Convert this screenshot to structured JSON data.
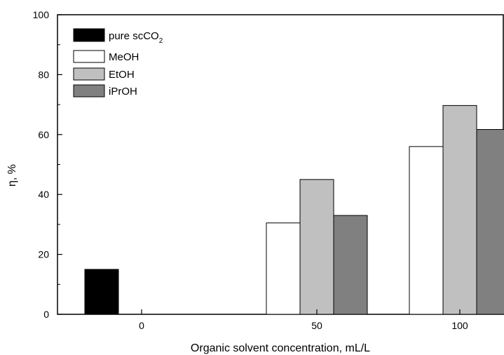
{
  "chart_data": {
    "type": "bar",
    "title": "",
    "xlabel": "Organic solvent concentration, mL/L",
    "ylabel": "η, %",
    "ylim": [
      0,
      100
    ],
    "yticks": [
      "0",
      "20",
      "40",
      "60",
      "80",
      "100"
    ],
    "categories": [
      "0",
      "50",
      "100"
    ],
    "legend_position": "top-left",
    "grid": false,
    "series": [
      {
        "name": "pure scCO",
        "name_subscript": "2",
        "color": "#000000",
        "values": [
          15,
          null,
          null
        ]
      },
      {
        "name": "MeOH",
        "color": "#ffffff",
        "values": [
          null,
          30.5,
          56
        ]
      },
      {
        "name": "EtOH",
        "color": "#c0c0c0",
        "values": [
          null,
          45,
          69.7
        ]
      },
      {
        "name": "iPrOH",
        "color": "#808080",
        "values": [
          null,
          33,
          61.7
        ]
      }
    ]
  }
}
